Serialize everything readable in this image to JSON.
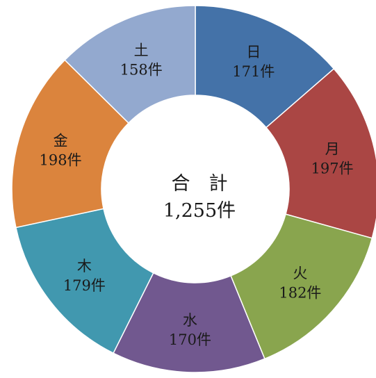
{
  "chart_data": {
    "type": "pie",
    "variant": "donut",
    "categories": [
      "日",
      "月",
      "火",
      "水",
      "木",
      "金",
      "土"
    ],
    "values": [
      171,
      197,
      182,
      170,
      179,
      198,
      158
    ],
    "value_labels": [
      "171件",
      "197件",
      "182件",
      "170件",
      "179件",
      "198件",
      "158件"
    ],
    "colors": [
      "#4472a8",
      "#aa4644",
      "#89a54e",
      "#71588f",
      "#4198af",
      "#db843d",
      "#93a9cf"
    ],
    "center_title": "合　計",
    "center_value": "1,255件",
    "start_angle_deg": 0,
    "direction": "clockwise"
  }
}
